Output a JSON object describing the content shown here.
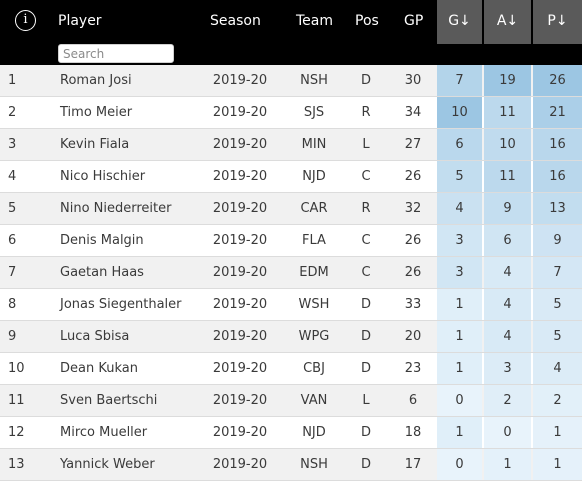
{
  "header": {
    "info_icon": "i",
    "player": "Player",
    "season": "Season",
    "team": "Team",
    "pos": "Pos",
    "gp": "GP",
    "g": "G↓",
    "a": "A↓",
    "p": "P↓",
    "search_placeholder": "Search"
  },
  "colors": {
    "header_bg": "#000000",
    "sorted_header_bg": "#5a5a5a",
    "row_alt": "#f1f1f1",
    "heat_low": "#e8f3fb",
    "heat_high": "#9cc6e3"
  },
  "rows": [
    {
      "rank": "1",
      "player": "Roman Josi",
      "season": "2019-20",
      "team": "NSH",
      "pos": "D",
      "gp": "30",
      "g": "7",
      "a": "19",
      "p": "26"
    },
    {
      "rank": "2",
      "player": "Timo Meier",
      "season": "2019-20",
      "team": "SJS",
      "pos": "R",
      "gp": "34",
      "g": "10",
      "a": "11",
      "p": "21"
    },
    {
      "rank": "3",
      "player": "Kevin Fiala",
      "season": "2019-20",
      "team": "MIN",
      "pos": "L",
      "gp": "27",
      "g": "6",
      "a": "10",
      "p": "16"
    },
    {
      "rank": "4",
      "player": "Nico Hischier",
      "season": "2019-20",
      "team": "NJD",
      "pos": "C",
      "gp": "26",
      "g": "5",
      "a": "11",
      "p": "16"
    },
    {
      "rank": "5",
      "player": "Nino Niederreiter",
      "season": "2019-20",
      "team": "CAR",
      "pos": "R",
      "gp": "32",
      "g": "4",
      "a": "9",
      "p": "13"
    },
    {
      "rank": "6",
      "player": "Denis Malgin",
      "season": "2019-20",
      "team": "FLA",
      "pos": "C",
      "gp": "26",
      "g": "3",
      "a": "6",
      "p": "9"
    },
    {
      "rank": "7",
      "player": "Gaetan Haas",
      "season": "2019-20",
      "team": "EDM",
      "pos": "C",
      "gp": "26",
      "g": "3",
      "a": "4",
      "p": "7"
    },
    {
      "rank": "8",
      "player": "Jonas Siegenthaler",
      "season": "2019-20",
      "team": "WSH",
      "pos": "D",
      "gp": "33",
      "g": "1",
      "a": "4",
      "p": "5"
    },
    {
      "rank": "9",
      "player": "Luca Sbisa",
      "season": "2019-20",
      "team": "WPG",
      "pos": "D",
      "gp": "20",
      "g": "1",
      "a": "4",
      "p": "5"
    },
    {
      "rank": "10",
      "player": "Dean Kukan",
      "season": "2019-20",
      "team": "CBJ",
      "pos": "D",
      "gp": "23",
      "g": "1",
      "a": "3",
      "p": "4"
    },
    {
      "rank": "11",
      "player": "Sven Baertschi",
      "season": "2019-20",
      "team": "VAN",
      "pos": "L",
      "gp": "6",
      "g": "0",
      "a": "2",
      "p": "2"
    },
    {
      "rank": "12",
      "player": "Mirco Mueller",
      "season": "2019-20",
      "team": "NJD",
      "pos": "D",
      "gp": "18",
      "g": "1",
      "a": "0",
      "p": "1"
    },
    {
      "rank": "13",
      "player": "Yannick Weber",
      "season": "2019-20",
      "team": "NSH",
      "pos": "D",
      "gp": "17",
      "g": "0",
      "a": "1",
      "p": "1"
    }
  ]
}
